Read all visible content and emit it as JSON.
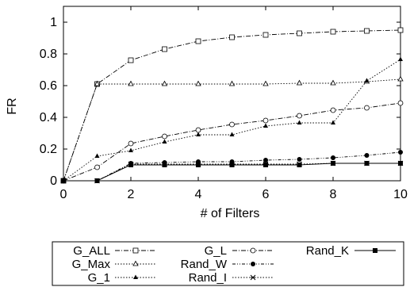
{
  "chart_data": {
    "type": "line",
    "xlabel": "# of Filters",
    "ylabel": "FR",
    "xlim": [
      0,
      10
    ],
    "ylim": [
      0,
      1.1
    ],
    "x_ticks": [
      "0",
      "2",
      "4",
      "6",
      "8",
      "10"
    ],
    "y_ticks": [
      "0",
      "0.2",
      "0.4",
      "0.6",
      "0.8",
      "1"
    ],
    "x": [
      0,
      1,
      2,
      3,
      4,
      5,
      6,
      7,
      8,
      9,
      10
    ],
    "legend_position": "bottom, outside plot",
    "series": [
      {
        "name": "G_ALL",
        "marker": "square-open",
        "dash": "dashdot",
        "values": [
          0,
          0.61,
          0.76,
          0.83,
          0.88,
          0.905,
          0.92,
          0.93,
          0.94,
          0.945,
          0.95
        ]
      },
      {
        "name": "G_L",
        "marker": "circle-open",
        "dash": "dashdot",
        "values": [
          0,
          0.085,
          0.235,
          0.28,
          0.32,
          0.355,
          0.38,
          0.41,
          0.445,
          0.46,
          0.49
        ]
      },
      {
        "name": "Rand_K",
        "marker": "square-filled",
        "dash": "solid",
        "values": [
          0,
          0,
          0.1,
          0.1,
          0.1,
          0.1,
          0.1,
          0.1,
          0.11,
          0.11,
          0.11
        ]
      },
      {
        "name": "G_Max",
        "marker": "triangle-open",
        "dash": "dotted",
        "values": [
          0,
          0.61,
          0.61,
          0.61,
          0.61,
          0.61,
          0.61,
          0.615,
          0.615,
          0.625,
          0.64
        ]
      },
      {
        "name": "Rand_W",
        "marker": "circle-filled",
        "dash": "dashdotted",
        "values": [
          0,
          0,
          0.11,
          0.115,
          0.12,
          0.12,
          0.13,
          0.135,
          0.145,
          0.16,
          0.18
        ]
      },
      {
        "name": "G_1",
        "marker": "triangle-filled",
        "dash": "dotted",
        "values": [
          0,
          0.155,
          0.19,
          0.245,
          0.29,
          0.29,
          0.345,
          0.365,
          0.365,
          0.63,
          0.765
        ]
      },
      {
        "name": "Rand_I",
        "marker": "star",
        "dash": "dotted",
        "values": [
          0,
          0,
          0.105,
          0.105,
          0.105,
          0.105,
          0.105,
          0.105,
          0.11,
          0.11,
          0.11
        ]
      }
    ]
  }
}
